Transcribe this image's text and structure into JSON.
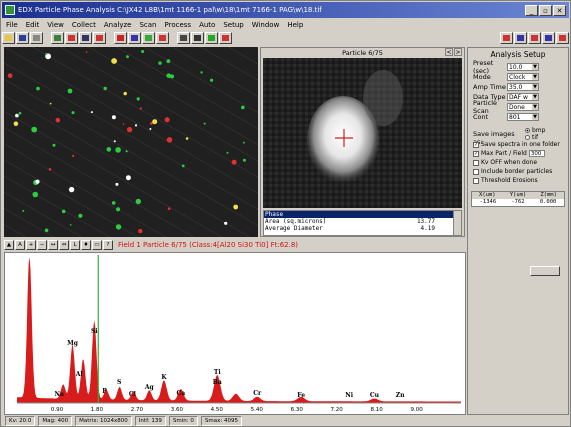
{
  "window": {
    "title": "EDX Particle Phase Analysis C:\\JX42 L8B\\1mt 1166-1 pal\\w\\18\\1mt 7166-1 PAG\\w\\18.tif",
    "controls": [
      "_",
      "▫",
      "✕"
    ]
  },
  "menu": [
    "File",
    "Edit",
    "View",
    "Collect",
    "Analyze",
    "Scan",
    "Process",
    "Auto",
    "Setup",
    "Window",
    "Help"
  ],
  "toolbar": {
    "left_icons": [
      "open-icon",
      "save-icon",
      "print-icon",
      "image-icon",
      "grid-icon",
      "table-icon",
      "chart-icon",
      "stop-icon",
      "zoom-icon",
      "particle-icon",
      "spectrum-icon",
      "phase-icon",
      "run-icon",
      "pause-icon",
      "settings-icon"
    ],
    "right_icons": [
      "layout-icon",
      "report-icon",
      "export-icon",
      "help-icon",
      "info-icon"
    ]
  },
  "particle_panel": {
    "title": "Particle 6/75",
    "nav": [
      "<",
      ">"
    ],
    "table": [
      {
        "label": "Phase",
        "value": ""
      },
      {
        "label": "Area (sq.microns)",
        "value": "13.77"
      },
      {
        "label": "Average Diameter",
        "value": "4.19"
      }
    ]
  },
  "setup": {
    "title": "Analysis Setup",
    "fields": [
      {
        "label": "Preset (sec)",
        "value": "10.0"
      },
      {
        "label": "Mode",
        "value": "Clock"
      },
      {
        "label": "Amp Time",
        "value": "35.0"
      },
      {
        "label": "Data Type",
        "value": "DAF w"
      },
      {
        "label": "Particle Scan",
        "value": "Done"
      },
      {
        "label": "Cont",
        "value": "801"
      }
    ],
    "save_images_label": "Save images as:",
    "save_options": [
      {
        "label": "bmp",
        "selected": true
      },
      {
        "label": "tif",
        "selected": false
      }
    ],
    "checks": [
      {
        "label": "Save spectra in one folder",
        "checked": true
      },
      {
        "label": "Max Part / Field",
        "checked": true,
        "input": "300"
      },
      {
        "label": "Kv OFF when done",
        "checked": false
      },
      {
        "label": "Include border particles",
        "checked": false
      },
      {
        "label": "Threshold Erosions",
        "checked": false
      }
    ],
    "coords": {
      "headers": [
        "X(um)",
        "Y(um)",
        "Z(mm)"
      ],
      "values": [
        "-1346",
        "-762",
        "0.000"
      ]
    }
  },
  "spectrum": {
    "info": "Field 1 Particle 6/75 (Class:4[Al20 Si30 Ti0] Ft:62.8)",
    "toolbar_icons": [
      "cursor-icon",
      "label-icon",
      "zoom-in-icon",
      "zoom-out-icon",
      "expand-icon",
      "compress-icon",
      "log-icon",
      "peak-icon",
      "fit-icon",
      "query-icon"
    ],
    "x_ticks": [
      "0.90",
      "1.80",
      "2.70",
      "3.60",
      "4.50",
      "5.40",
      "6.30",
      "7.20",
      "8.10",
      "9.00"
    ],
    "peaks": [
      "Na",
      "Mg",
      "Al",
      "Si",
      "P",
      "S",
      "Cl",
      "Ag",
      "K",
      "Ca",
      "Ti",
      "Ba",
      "Cr",
      "Fe",
      "Ni",
      "Cu",
      "Zn"
    ],
    "marker_color": "#2db52d",
    "trace_color": "#d81b1b"
  },
  "status": [
    "Kv: 20.0",
    "Mag: 400",
    "Matrix: 1024x800",
    "Intf: 139",
    "Smin: 0",
    "Smax: 4095"
  ]
}
